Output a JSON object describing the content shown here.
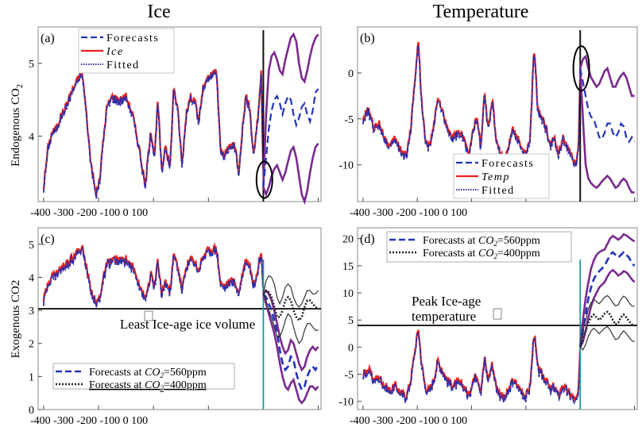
{
  "figure": {
    "column_titles": [
      "Ice",
      "Temperature"
    ],
    "row_ylabels": {
      "top": {
        "main": "Endogenous CO",
        "sub": "2"
      },
      "bottom": "Exogenous CO2"
    }
  },
  "colors": {
    "forecast": "#2233bb",
    "observed": "#e8221c",
    "fitted": "#3a2a9a",
    "band": "#7a2a8e",
    "low_forecast": "#222222",
    "divider": "#111111",
    "divider_teal": "#1a9a9a",
    "refline": "#222222",
    "annotation_circle": "#000000"
  },
  "chart_data": [
    {
      "id": "a",
      "label": "(a)",
      "title": "Ice",
      "type": "line",
      "ylabel": "Endogenous CO2",
      "xlim": [
        -410,
        105
      ],
      "ylim": [
        3.1,
        5.5
      ],
      "xticks": [
        -400,
        -300,
        -200,
        -100,
        0,
        100
      ],
      "xtick_labels": [
        "-400",
        "-300",
        "-200",
        "-100",
        "0",
        "100"
      ],
      "xtick_row": "-400 -300 -200 -100 0 100",
      "yticks": [
        4,
        5
      ],
      "ytick_labels": [
        "4",
        "5"
      ],
      "forecast_start": 0,
      "legend": [
        "Forecasts",
        "Ice",
        "Fitted"
      ],
      "legend_italic": [
        false,
        true,
        false
      ],
      "legend_position": "top-left",
      "historical": {
        "x": [
          -400,
          -392,
          -385,
          -378,
          -370,
          -360,
          -350,
          -340,
          -330,
          -322,
          -315,
          -305,
          -298,
          -292,
          -285,
          -275,
          -262,
          -250,
          -238,
          -225,
          -215,
          -205,
          -198,
          -192,
          -185,
          -178,
          -170,
          -163,
          -155,
          -148,
          -140,
          -132,
          -125,
          -118,
          -110,
          -100,
          -92,
          -85,
          -78,
          -70,
          -62,
          -55,
          -50,
          -45,
          -40,
          -32,
          -25,
          -18,
          -10,
          -4,
          0
        ],
        "y": [
          3.3,
          3.85,
          4.05,
          4.1,
          4.25,
          4.4,
          4.6,
          4.75,
          4.9,
          4.3,
          3.7,
          3.2,
          3.4,
          3.9,
          4.4,
          4.55,
          4.5,
          4.55,
          4.3,
          3.8,
          3.3,
          4.1,
          3.7,
          4.5,
          3.5,
          3.9,
          3.55,
          4.7,
          4.3,
          3.6,
          4.35,
          4.55,
          4.5,
          4.2,
          4.65,
          4.8,
          4.85,
          4.9,
          3.8,
          3.75,
          3.85,
          3.9,
          3.8,
          3.5,
          3.95,
          4.55,
          4.4,
          3.75,
          4.25,
          4.85,
          3.5
        ]
      },
      "forecast": {
        "x": [
          0,
          5,
          10,
          15,
          20,
          25,
          30,
          35,
          40,
          45,
          50,
          55,
          60,
          65,
          70,
          75,
          80,
          85,
          90,
          95,
          100
        ],
        "central": [
          3.3,
          3.7,
          4.1,
          4.35,
          4.5,
          4.55,
          4.45,
          4.3,
          4.45,
          4.55,
          4.5,
          4.3,
          4.15,
          4.25,
          4.4,
          4.45,
          4.3,
          4.2,
          4.35,
          4.6,
          4.65
        ],
        "upper": [
          3.3,
          4.3,
          4.9,
          5.1,
          5.15,
          5.05,
          4.9,
          4.85,
          5.05,
          5.2,
          5.35,
          5.4,
          5.3,
          5.0,
          4.8,
          4.75,
          4.9,
          5.1,
          5.25,
          5.35,
          5.4
        ],
        "lower": [
          3.3,
          3.2,
          3.3,
          3.45,
          3.55,
          3.6,
          3.5,
          3.4,
          3.5,
          3.65,
          3.8,
          3.85,
          3.7,
          3.45,
          3.2,
          3.1,
          3.25,
          3.5,
          3.7,
          3.85,
          3.9
        ]
      },
      "annotation": {
        "type": "ellipse",
        "x": 2,
        "y": 3.4
      }
    },
    {
      "id": "b",
      "label": "(b)",
      "title": "Temperature",
      "type": "line",
      "ylabel": "",
      "xlim": [
        -410,
        105
      ],
      "ylim": [
        -14,
        5
      ],
      "xticks": [
        -400,
        -300,
        -200,
        -100,
        0,
        100
      ],
      "xtick_labels": [
        "-400",
        "-300",
        "-200",
        "-100",
        "0",
        "100"
      ],
      "xtick_row": "-400 -300 -200 -100 0 100",
      "yticks": [
        -10,
        -5,
        0
      ],
      "ytick_labels": [
        "-10",
        "-5",
        "0"
      ],
      "forecast_start": 0,
      "legend": [
        "Forecasts",
        "Temp",
        "Fitted"
      ],
      "legend_italic": [
        false,
        true,
        false
      ],
      "legend_position": "bottom-left",
      "historical": {
        "x": [
          -400,
          -390,
          -380,
          -370,
          -360,
          -350,
          -340,
          -330,
          -320,
          -312,
          -305,
          -298,
          -292,
          -285,
          -278,
          -270,
          -262,
          -255,
          -245,
          -235,
          -225,
          -215,
          -205,
          -198,
          -190,
          -183,
          -176,
          -170,
          -162,
          -155,
          -148,
          -140,
          -132,
          -124,
          -116,
          -108,
          -100,
          -92,
          -85,
          -78,
          -70,
          -62,
          -55,
          -48,
          -40,
          -32,
          -24,
          -16,
          -8,
          -3,
          0
        ],
        "y": [
          -5,
          -4,
          -6,
          -5.5,
          -7,
          -8,
          -7,
          -8.5,
          -9,
          -6,
          -1,
          3.5,
          -3,
          -7.5,
          -8,
          -6,
          -2.5,
          -4,
          -6,
          -7,
          -6.5,
          -7,
          -9,
          -6,
          -5,
          -8,
          -2,
          -6,
          -3,
          -7,
          -8.5,
          -9.5,
          -8,
          -6,
          -7,
          -8,
          -9,
          -7,
          3,
          -4,
          -5,
          -6,
          -8,
          -7,
          -9,
          -7,
          -8,
          -9,
          -10,
          -8,
          0.5
        ]
      },
      "forecast": {
        "x": [
          0,
          5,
          10,
          15,
          20,
          25,
          30,
          35,
          40,
          45,
          50,
          55,
          60,
          65,
          70,
          75,
          80,
          85,
          90,
          95,
          100
        ],
        "central": [
          0.5,
          -1,
          -2.5,
          -4,
          -4.8,
          -5,
          -6,
          -7,
          -7.2,
          -6.5,
          -5.5,
          -5.5,
          -6.5,
          -7,
          -6.5,
          -5.5,
          -5.8,
          -7,
          -7.5,
          -7,
          -7.5
        ],
        "upper": [
          0.5,
          1.5,
          1.8,
          0.5,
          -0.5,
          -1,
          -1.5,
          -1.2,
          -0.5,
          0.2,
          0.5,
          -0.5,
          -1.5,
          -1.5,
          -0.8,
          -0.3,
          0,
          -0.5,
          -1.5,
          -2.5,
          -2.5
        ],
        "lower": [
          0.5,
          -5,
          -10,
          -11.5,
          -12,
          -12.3,
          -12.5,
          -12.2,
          -11.8,
          -11.5,
          -11.2,
          -11.5,
          -12,
          -12.5,
          -12.3,
          -11.8,
          -11.5,
          -11.8,
          -12.5,
          -13,
          -13
        ]
      },
      "annotation": {
        "type": "ellipse",
        "x": 2,
        "y": 0.5
      }
    },
    {
      "id": "c",
      "label": "(c)",
      "type": "line",
      "ylabel": "Exogenous CO2",
      "xlim": [
        -410,
        105
      ],
      "ylim": [
        0,
        5.5
      ],
      "xticks": [
        -400,
        -300,
        -200,
        -100,
        0,
        100
      ],
      "xtick_labels": [
        "-400",
        "-300",
        "-200",
        "-100",
        "0",
        "100"
      ],
      "xtick_row": "-400 -300 -200 -100 0 100",
      "yticks": [
        0,
        1,
        2,
        3,
        4,
        5
      ],
      "ytick_labels": [
        "0",
        "1",
        "2",
        "3",
        "4",
        "5"
      ],
      "forecast_start": 0,
      "legend": [
        {
          "text": "Forecasts at ",
          "var": "CO",
          "sub": "2",
          "value": "=560ppm"
        },
        {
          "text": "Forecasts at ",
          "var": "CO",
          "sub": "2",
          "value": "=400ppm"
        }
      ],
      "legend_position": "bottom-left",
      "reference_line": {
        "y": 3.05,
        "text": "Least Ice-age ice volume"
      },
      "historical": {
        "x": [
          -400,
          -392,
          -385,
          -378,
          -370,
          -360,
          -350,
          -340,
          -330,
          -322,
          -315,
          -305,
          -298,
          -292,
          -285,
          -275,
          -262,
          -250,
          -238,
          -225,
          -215,
          -205,
          -198,
          -192,
          -185,
          -178,
          -170,
          -163,
          -155,
          -148,
          -140,
          -132,
          -125,
          -118,
          -110,
          -100,
          -92,
          -85,
          -78,
          -70,
          -62,
          -55,
          -50,
          -45,
          -40,
          -32,
          -25,
          -18,
          -10,
          -4,
          0
        ],
        "y": [
          3.3,
          3.85,
          4.05,
          4.1,
          4.25,
          4.4,
          4.6,
          4.75,
          4.9,
          4.3,
          3.7,
          3.2,
          3.4,
          3.9,
          4.4,
          4.55,
          4.5,
          4.55,
          4.3,
          3.8,
          3.3,
          4.1,
          3.7,
          4.5,
          3.5,
          3.9,
          3.55,
          4.7,
          4.3,
          3.6,
          4.35,
          4.55,
          4.5,
          4.2,
          4.65,
          4.8,
          4.85,
          4.9,
          3.8,
          3.75,
          3.85,
          3.9,
          3.8,
          3.5,
          3.95,
          4.55,
          4.4,
          3.75,
          4.25,
          4.85,
          3.5
        ]
      },
      "forecast_560": {
        "x": [
          0,
          5,
          10,
          15,
          20,
          25,
          30,
          35,
          40,
          45,
          50,
          55,
          60,
          65,
          70,
          75,
          80,
          85,
          90,
          95,
          100
        ],
        "central": [
          3.5,
          3.4,
          3.2,
          3.0,
          2.7,
          2.3,
          1.8,
          1.4,
          1.2,
          1.3,
          1.6,
          1.5,
          1.1,
          0.8,
          0.6,
          0.7,
          1.0,
          1.2,
          1.3,
          1.2,
          1.4
        ],
        "upper": [
          3.5,
          3.6,
          3.5,
          3.3,
          3.0,
          2.6,
          2.2,
          1.9,
          1.7,
          1.8,
          2.1,
          2.0,
          1.7,
          1.4,
          1.2,
          1.3,
          1.6,
          1.8,
          1.9,
          1.8,
          1.9
        ],
        "lower": [
          3.5,
          3.2,
          2.9,
          2.6,
          2.3,
          1.9,
          1.4,
          1.0,
          0.7,
          0.6,
          0.8,
          0.9,
          0.6,
          0.3,
          0.2,
          0.3,
          0.5,
          0.7,
          0.7,
          0.6,
          0.7
        ]
      },
      "forecast_400": {
        "x": [
          0,
          5,
          10,
          15,
          20,
          25,
          30,
          35,
          40,
          45,
          50,
          55,
          60,
          65,
          70,
          75,
          80,
          85,
          90,
          95,
          100
        ],
        "central": [
          3.5,
          3.6,
          3.55,
          3.4,
          3.1,
          2.8,
          2.8,
          3.0,
          3.3,
          3.4,
          3.3,
          3.0,
          2.8,
          2.7,
          2.8,
          3.1,
          3.3,
          3.3,
          3.2,
          3.1,
          3.05
        ],
        "upper": [
          3.5,
          3.9,
          4.05,
          4.0,
          3.8,
          3.4,
          3.2,
          3.4,
          3.7,
          3.8,
          3.7,
          3.4,
          3.2,
          3.1,
          3.2,
          3.4,
          3.6,
          3.6,
          3.5,
          3.5,
          3.6
        ],
        "lower": [
          3.5,
          3.3,
          3.0,
          2.8,
          2.5,
          2.2,
          2.2,
          2.4,
          2.7,
          2.9,
          2.8,
          2.5,
          2.2,
          2.0,
          2.1,
          2.4,
          2.6,
          2.6,
          2.5,
          2.4,
          2.4
        ]
      }
    },
    {
      "id": "d",
      "label": "(d)",
      "type": "line",
      "ylabel": "",
      "xlim": [
        -410,
        105
      ],
      "ylim": [
        -11.5,
        22
      ],
      "xticks": [
        -400,
        -300,
        -200,
        -100,
        0,
        100
      ],
      "xtick_labels": [
        "-400",
        "-300",
        "-200",
        "-100",
        "0",
        "100"
      ],
      "xtick_row": "-400 -300 -200 -100 0 100",
      "yticks": [
        -10,
        -5,
        0,
        5,
        10,
        15,
        20
      ],
      "ytick_labels": [
        "-10",
        "-5",
        "0",
        "5",
        "10",
        "15",
        "20"
      ],
      "forecast_start": 0,
      "legend": [
        {
          "text": "Forecasts at ",
          "var": "CO",
          "sub": "2",
          "value": "=560ppm"
        },
        {
          "text": "Forecasts at ",
          "var": "CO",
          "sub": "2",
          "value": "=400ppm"
        }
      ],
      "legend_position": "top-left",
      "reference_line": {
        "y": 4,
        "text": [
          "Peak Ice-age",
          "temperature"
        ]
      },
      "historical": {
        "x": [
          -400,
          -390,
          -380,
          -370,
          -360,
          -350,
          -340,
          -330,
          -320,
          -312,
          -305,
          -298,
          -292,
          -285,
          -278,
          -270,
          -262,
          -255,
          -245,
          -235,
          -225,
          -215,
          -205,
          -198,
          -190,
          -183,
          -176,
          -170,
          -162,
          -155,
          -148,
          -140,
          -132,
          -124,
          -116,
          -108,
          -100,
          -92,
          -85,
          -78,
          -70,
          -62,
          -55,
          -48,
          -40,
          -32,
          -24,
          -16,
          -8,
          -3,
          0
        ],
        "y": [
          -5,
          -4,
          -6,
          -5.5,
          -7,
          -8,
          -7,
          -8.5,
          -9,
          -6,
          -1,
          3.5,
          -3,
          -7.5,
          -8,
          -6,
          -2.5,
          -4,
          -6,
          -7,
          -6.5,
          -7,
          -9,
          -6,
          -5,
          -8,
          -2,
          -6,
          -3,
          -7,
          -8.5,
          -9.5,
          -8,
          -6,
          -7,
          -8,
          -9,
          -7,
          3,
          -4,
          -5,
          -6,
          -8,
          -7,
          -9,
          -7,
          -8,
          -9,
          -10,
          -8,
          0
        ]
      },
      "forecast_560": {
        "x": [
          0,
          5,
          10,
          15,
          20,
          25,
          30,
          35,
          40,
          45,
          50,
          55,
          60,
          65,
          70,
          75,
          80,
          85,
          90,
          95,
          100
        ],
        "central": [
          0,
          3,
          6,
          9,
          11,
          12.5,
          13.5,
          14,
          14.5,
          15,
          16,
          17,
          17.5,
          17,
          16.5,
          17,
          17.5,
          17,
          16.5,
          15.5,
          15
        ],
        "upper": [
          0,
          5,
          9,
          12,
          14.5,
          16,
          17,
          17.5,
          17.8,
          18,
          19,
          20,
          20.5,
          20.2,
          19.8,
          20.2,
          20.8,
          20.6,
          20.2,
          19.8,
          19.5
        ],
        "lower": [
          0,
          1,
          3,
          5.5,
          7.5,
          9,
          10,
          11,
          11.5,
          12,
          13,
          13.8,
          14.2,
          13.8,
          13.2,
          13.5,
          14,
          13.8,
          13.2,
          12.5,
          12
        ]
      },
      "forecast_400": {
        "x": [
          0,
          5,
          10,
          15,
          20,
          25,
          30,
          35,
          40,
          45,
          50,
          55,
          60,
          65,
          70,
          75,
          80,
          85,
          90,
          95,
          100
        ],
        "central": [
          0,
          1.5,
          3,
          4.5,
          5.5,
          6,
          5.5,
          5,
          5.5,
          6.2,
          6.5,
          6,
          5,
          4.2,
          4.5,
          5.5,
          6,
          5.5,
          4.8,
          4.2,
          4
        ],
        "upper": [
          0,
          3,
          5,
          7,
          8.2,
          8.8,
          8.4,
          8,
          8.6,
          9.2,
          9.5,
          9,
          8.2,
          7.6,
          7.8,
          8.8,
          9.4,
          9,
          8.2,
          7.6,
          7.5
        ],
        "lower": [
          0,
          -0.5,
          0.5,
          2,
          3,
          3.5,
          3,
          2.5,
          3,
          3.5,
          3.8,
          3.2,
          2.2,
          1.4,
          1.6,
          2.4,
          3,
          2.5,
          1.8,
          1.2,
          1
        ]
      }
    }
  ]
}
